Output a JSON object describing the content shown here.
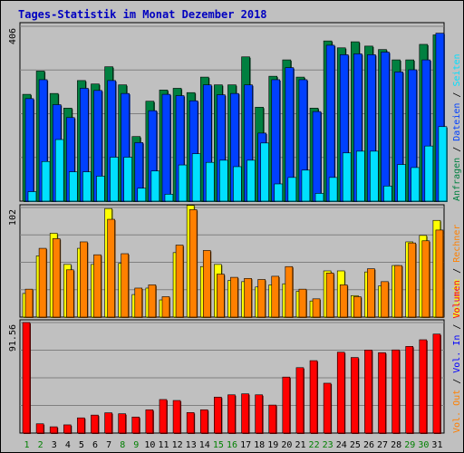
{
  "title": "Tages-Statistik im Monat Dezember 2018",
  "colors": {
    "background": "#c0c0c0",
    "title": "#0000c0",
    "grid": "#808080",
    "anfragen": "#008040",
    "dateien": "#0040ff",
    "seiten": "#00e0ff",
    "besuche": "#ffff00",
    "rechner": "#ff8000",
    "volumen": "#ff0000",
    "weekend_day": "#008000",
    "weekday_day": "#000000"
  },
  "right_legend": {
    "top": [
      {
        "text": "Anfragen",
        "color": "#008040"
      },
      {
        "text": "Dateien",
        "color": "#0040ff"
      },
      {
        "text": "Seiten",
        "color": "#00e0ff"
      }
    ],
    "middle": [
      {
        "text": "Besuche",
        "color": "#ffff00"
      },
      {
        "text": "Rechner",
        "color": "#ff8000"
      }
    ],
    "bottom": [
      {
        "text": "Vol. Out",
        "color": "#ff8000"
      },
      {
        "text": "Vol. In",
        "color": "#0000ff"
      },
      {
        "text": "Volumen",
        "color": "#ff0000"
      }
    ]
  },
  "chart_data": [
    {
      "type": "bar",
      "panel": "top",
      "y_max_label": "406",
      "ylim": [
        0,
        406
      ],
      "categories": [
        "1",
        "2",
        "3",
        "4",
        "5",
        "6",
        "7",
        "8",
        "9",
        "10",
        "11",
        "12",
        "13",
        "14",
        "15",
        "16",
        "17",
        "18",
        "19",
        "20",
        "21",
        "22",
        "23",
        "24",
        "25",
        "26",
        "27",
        "28",
        "29",
        "30",
        "31"
      ],
      "series": [
        {
          "name": "Anfragen",
          "values": [
            248,
            302,
            250,
            216,
            280,
            272,
            312,
            270,
            150,
            232,
            258,
            262,
            252,
            288,
            270,
            270,
            335,
            218,
            290,
            328,
            288,
            216,
            372,
            356,
            370,
            360,
            352,
            328,
            328,
            364,
            386
          ]
        },
        {
          "name": "Dateien",
          "values": [
            238,
            282,
            224,
            194,
            262,
            257,
            280,
            250,
            136,
            210,
            248,
            245,
            233,
            270,
            247,
            250,
            270,
            158,
            282,
            310,
            282,
            208,
            362,
            340,
            342,
            340,
            346,
            300,
            305,
            328,
            390
          ]
        },
        {
          "name": "Seiten",
          "values": [
            22,
            92,
            143,
            68,
            68,
            58,
            102,
            102,
            30,
            70,
            16,
            84,
            110,
            90,
            95,
            80,
            95,
            135,
            40,
            55,
            72,
            18,
            55,
            112,
            116,
            116,
            35,
            85,
            78,
            128,
            173
          ]
        }
      ]
    },
    {
      "type": "bar",
      "panel": "middle",
      "y_max_label": "102",
      "ylim": [
        0,
        102
      ],
      "categories": [
        "1",
        "2",
        "3",
        "4",
        "5",
        "6",
        "7",
        "8",
        "9",
        "10",
        "11",
        "12",
        "13",
        "14",
        "15",
        "16",
        "17",
        "18",
        "19",
        "20",
        "21",
        "22",
        "23",
        "24",
        "25",
        "26",
        "27",
        "28",
        "29",
        "30",
        "31"
      ],
      "series": [
        {
          "name": "Besuche",
          "values": [
            22,
            57,
            78,
            49,
            64,
            49,
            101,
            50,
            21,
            27,
            16,
            60,
            104,
            47,
            49,
            34,
            33,
            28,
            30,
            31,
            24,
            15,
            43,
            43,
            20,
            42,
            29,
            48,
            70,
            76,
            90
          ]
        },
        {
          "name": "Rechner",
          "values": [
            26,
            64,
            73,
            44,
            70,
            58,
            91,
            59,
            27,
            30,
            19,
            67,
            100,
            62,
            40,
            37,
            36,
            35,
            38,
            47,
            26,
            17,
            41,
            30,
            19,
            45,
            33,
            48,
            69,
            71,
            81
          ]
        }
      ]
    },
    {
      "type": "bar",
      "panel": "bottom",
      "y_max_label": "91.56",
      "ylim": [
        0,
        91.56
      ],
      "categories": [
        "1",
        "2",
        "3",
        "4",
        "5",
        "6",
        "7",
        "8",
        "9",
        "10",
        "11",
        "12",
        "13",
        "14",
        "15",
        "16",
        "17",
        "18",
        "19",
        "20",
        "21",
        "22",
        "23",
        "24",
        "25",
        "26",
        "27",
        "28",
        "29",
        "30",
        "31"
      ],
      "series": [
        {
          "name": "Volumen",
          "values": [
            91.6,
            7.7,
            5.2,
            6.8,
            12.6,
            14.9,
            16.8,
            16.0,
            13.3,
            19.3,
            27.8,
            27.0,
            17.0,
            19.3,
            29.8,
            31.7,
            32.5,
            31.7,
            23.2,
            46.4,
            54.2,
            60.0,
            41.3,
            67.0,
            62.6,
            68.8,
            66.6,
            68.9,
            71.8,
            77.3,
            82.0
          ]
        }
      ]
    }
  ],
  "x_axis": {
    "days": [
      "1",
      "2",
      "3",
      "4",
      "5",
      "6",
      "7",
      "8",
      "9",
      "10",
      "11",
      "12",
      "13",
      "14",
      "15",
      "16",
      "17",
      "18",
      "19",
      "20",
      "21",
      "22",
      "23",
      "24",
      "25",
      "26",
      "27",
      "28",
      "29",
      "30",
      "31"
    ],
    "weekend": [
      1,
      2,
      8,
      9,
      15,
      16,
      22,
      23,
      29,
      30
    ]
  }
}
